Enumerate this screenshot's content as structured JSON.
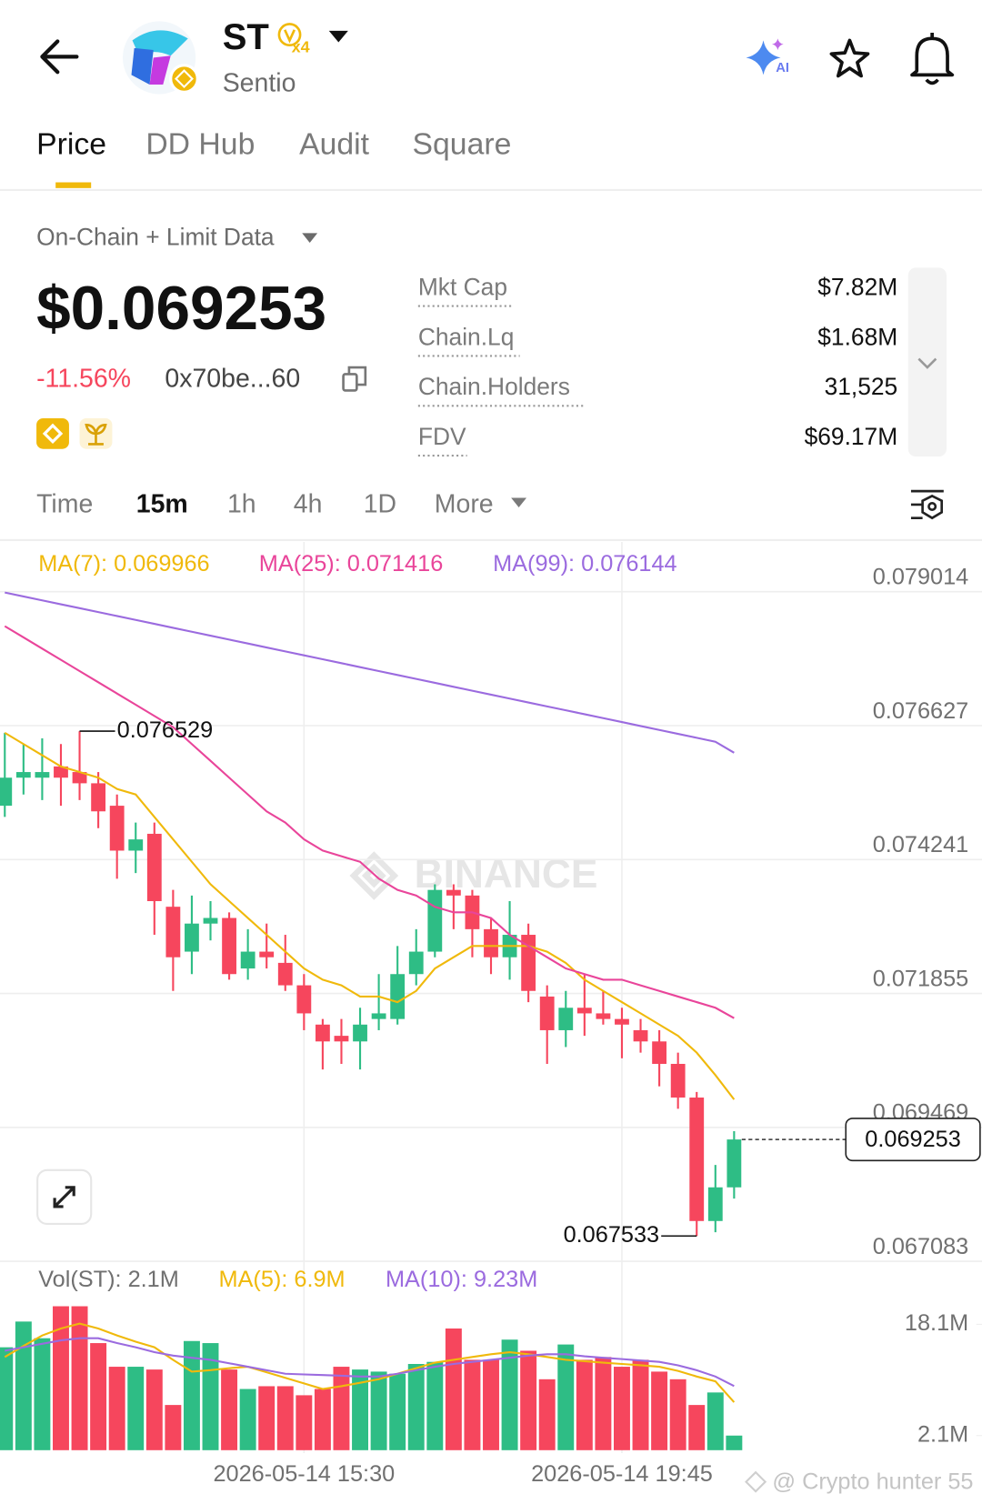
{
  "header": {
    "symbol": "ST",
    "badge": "x4",
    "name": "Sentio",
    "ai": "AI"
  },
  "tabs": [
    "Price",
    "DD Hub",
    "Audit",
    "Square"
  ],
  "data_source": "On-Chain + Limit Data",
  "price": "$0.069253",
  "change": "-11.56%",
  "address": "0x70be...60",
  "stats": [
    {
      "label": "Mkt Cap",
      "value": "$7.82M"
    },
    {
      "label": "Chain.Lq",
      "value": "$1.68M"
    },
    {
      "label": "Chain.Holders",
      "value": "31,525"
    },
    {
      "label": "FDV",
      "value": "$69.17M"
    }
  ],
  "intervals": [
    "Time",
    "15m",
    "1h",
    "4h",
    "1D",
    "More"
  ],
  "watermark": "BINANCE",
  "credit": "@ Crypto hunter 55",
  "chart_data": [
    {
      "type": "candlestick",
      "up_color": "#2EBD85",
      "down_color": "#F6465D",
      "grid": true,
      "categories": [
        null,
        null,
        null,
        null,
        null,
        null,
        null,
        null,
        null,
        null,
        null,
        null,
        null,
        null,
        null,
        null,
        "2026-05-14 15:30",
        null,
        null,
        null,
        null,
        null,
        null,
        null,
        null,
        null,
        null,
        null,
        null,
        null,
        null,
        null,
        null,
        "2026-05-14 19:45",
        null,
        null,
        null,
        null,
        null,
        null
      ],
      "open": [
        0.0752,
        0.0757,
        0.0757,
        0.0759,
        0.0758,
        0.0756,
        0.0752,
        0.0744,
        0.0747,
        0.0734,
        0.0726,
        0.0731,
        0.0732,
        0.0723,
        0.0726,
        0.0724,
        0.072,
        0.0713,
        0.0711,
        0.071,
        0.0714,
        0.0714,
        0.0722,
        0.0726,
        0.0737,
        0.0736,
        0.073,
        0.0725,
        0.0729,
        0.0718,
        0.0712,
        0.0716,
        0.0715,
        0.0714,
        0.0712,
        0.071,
        0.0706,
        0.07,
        0.0678,
        0.0684
      ],
      "high": [
        0.0765,
        0.0763,
        0.0764,
        0.0763,
        0.076529,
        0.0758,
        0.0754,
        0.0749,
        0.0749,
        0.0737,
        0.0736,
        0.0735,
        0.0733,
        0.073,
        0.0731,
        0.0729,
        0.0722,
        0.0714,
        0.0714,
        0.0716,
        0.0722,
        0.0727,
        0.073,
        0.0738,
        0.0738,
        0.0737,
        0.0732,
        0.0735,
        0.0731,
        0.072,
        0.0719,
        0.0722,
        0.0719,
        0.0716,
        0.0714,
        0.0712,
        0.0708,
        0.0701,
        0.0688,
        0.0694
      ],
      "low": [
        0.075,
        0.0754,
        0.0753,
        0.0752,
        0.0753,
        0.0748,
        0.0739,
        0.074,
        0.0729,
        0.0719,
        0.0722,
        0.0728,
        0.0721,
        0.0721,
        0.0723,
        0.0719,
        0.0712,
        0.0705,
        0.0706,
        0.0705,
        0.0712,
        0.0713,
        0.072,
        0.0725,
        0.073,
        0.0725,
        0.0722,
        0.0721,
        0.0717,
        0.0706,
        0.0709,
        0.0711,
        0.0713,
        0.0707,
        0.0708,
        0.0702,
        0.0698,
        0.067533,
        0.0676,
        0.0682
      ],
      "close": [
        0.0757,
        0.0758,
        0.0758,
        0.0757,
        0.0756,
        0.0751,
        0.0744,
        0.0746,
        0.0735,
        0.0725,
        0.0731,
        0.0732,
        0.0722,
        0.0726,
        0.0725,
        0.072,
        0.0715,
        0.071,
        0.071,
        0.0713,
        0.0715,
        0.0722,
        0.0726,
        0.0737,
        0.0736,
        0.073,
        0.0725,
        0.0729,
        0.0719,
        0.0712,
        0.0716,
        0.0715,
        0.0714,
        0.0713,
        0.071,
        0.0706,
        0.07,
        0.0678,
        0.0684,
        0.069253
      ],
      "series": [
        {
          "name": "MA(7): 0.069966",
          "color": "#F0B90B",
          "values": [
            0.0765,
            0.0763,
            0.0761,
            0.0759,
            0.0758,
            0.0757,
            0.0755,
            0.0754,
            0.075,
            0.0746,
            0.0742,
            0.0738,
            0.0735,
            0.0732,
            0.0729,
            0.0726,
            0.0723,
            0.0721,
            0.072,
            0.0718,
            0.0718,
            0.0717,
            0.0719,
            0.0723,
            0.0725,
            0.0727,
            0.0727,
            0.0727,
            0.0727,
            0.0726,
            0.0724,
            0.0721,
            0.0719,
            0.0717,
            0.0715,
            0.0713,
            0.0711,
            0.0708,
            0.0704,
            0.069966
          ]
        },
        {
          "name": "MA(25): 0.071416",
          "color": "#E9459A",
          "values": [
            0.0784,
            0.0782,
            0.078,
            0.0778,
            0.0776,
            0.0774,
            0.0772,
            0.077,
            0.0768,
            0.0766,
            0.0763,
            0.076,
            0.0757,
            0.0754,
            0.0751,
            0.0749,
            0.0746,
            0.0744,
            0.0743,
            0.0742,
            0.0739,
            0.0737,
            0.0736,
            0.0734,
            0.0733,
            0.0733,
            0.0732,
            0.0729,
            0.0727,
            0.0725,
            0.0723,
            0.0722,
            0.0721,
            0.0721,
            0.072,
            0.0719,
            0.0718,
            0.0717,
            0.0716,
            0.071416
          ]
        },
        {
          "name": "MA(99): 0.076144",
          "color": "#9B6BDF",
          "values": [
            0.079,
            0.07893,
            0.07886,
            0.07879,
            0.07872,
            0.07865,
            0.07858,
            0.07851,
            0.07844,
            0.07837,
            0.0783,
            0.07823,
            0.07816,
            0.07809,
            0.07802,
            0.07795,
            0.07788,
            0.07781,
            0.07774,
            0.07767,
            0.0776,
            0.07753,
            0.07746,
            0.07739,
            0.07732,
            0.07725,
            0.07718,
            0.07711,
            0.07704,
            0.07697,
            0.0769,
            0.07683,
            0.07676,
            0.07669,
            0.07662,
            0.07655,
            0.07648,
            0.07641,
            0.07634,
            0.076144
          ]
        }
      ],
      "ylim": [
        0.067083,
        0.0799
      ],
      "yticks": [
        0.079014,
        0.076627,
        0.074241,
        0.071855,
        0.069469,
        0.067083
      ]
    },
    {
      "type": "bar",
      "grid": false,
      "series": [
        {
          "name": "Vol(ST): 2.1M",
          "color": "#707070",
          "values": [
            14.8,
            18.5,
            16.1,
            20.7,
            20.7,
            15.4,
            12.0,
            12.0,
            11.6,
            6.5,
            15.7,
            15.4,
            11.6,
            8.8,
            9.2,
            9.2,
            7.9,
            8.8,
            12.0,
            11.6,
            11.3,
            11.0,
            12.4,
            12.7,
            17.5,
            13.0,
            13.0,
            15.9,
            14.3,
            10.2,
            15.2,
            13.0,
            13.4,
            12.0,
            13.0,
            11.3,
            10.2,
            6.5,
            8.3,
            2.1
          ]
        }
      ],
      "lines": [
        {
          "name": "MA(5): 6.9M",
          "color": "#F0B90B",
          "values": [
            13.4,
            15.0,
            16.5,
            17.5,
            18.2,
            17.5,
            16.5,
            15.6,
            14.8,
            13.0,
            11.3,
            11.5,
            11.8,
            12.0,
            11.2,
            10.4,
            9.6,
            8.8,
            9.2,
            9.7,
            10.2,
            11.0,
            11.8,
            12.6,
            13.0,
            13.4,
            13.8,
            14.1,
            13.8,
            13.4,
            13.0,
            12.8,
            12.6,
            12.4,
            12.2,
            12.0,
            11.4,
            10.6,
            9.9,
            6.9
          ]
        },
        {
          "name": "MA(10): 9.23M",
          "color": "#9B6BDF",
          "values": [
            14.3,
            14.8,
            15.3,
            15.8,
            16.1,
            16.1,
            15.4,
            14.8,
            14.1,
            13.6,
            13.3,
            13.0,
            12.5,
            12.0,
            11.5,
            11.0,
            10.9,
            10.8,
            10.7,
            10.6,
            10.6,
            11.0,
            11.5,
            12.0,
            12.4,
            12.7,
            13.0,
            13.3,
            13.6,
            13.8,
            13.8,
            13.5,
            13.3,
            13.1,
            12.9,
            12.7,
            12.2,
            11.5,
            10.6,
            9.23
          ]
        }
      ],
      "ylim": [
        0,
        22
      ],
      "yticks": [
        {
          "value": 18.1,
          "label": "18.1M"
        },
        {
          "value": 2.1,
          "label": "2.1M"
        }
      ]
    }
  ]
}
